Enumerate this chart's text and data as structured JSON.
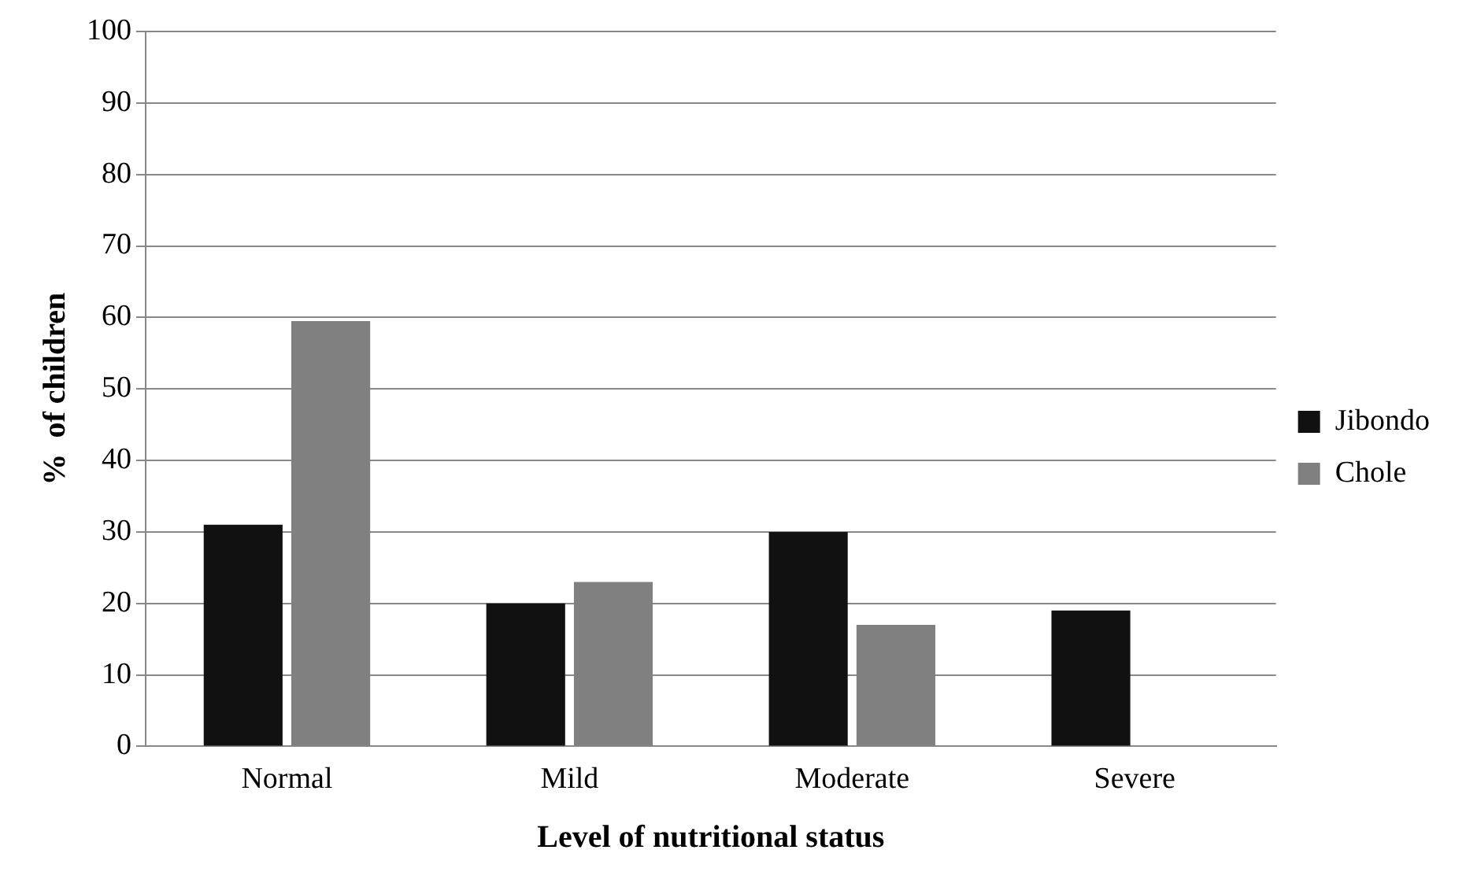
{
  "chart_data": {
    "type": "bar",
    "xlabel": "Level of nutritional status",
    "ylabel": "%  of children",
    "categories": [
      "Normal",
      "Mild",
      "Moderate",
      "Severe"
    ],
    "series": [
      {
        "name": "Jibondo",
        "color": "#111111",
        "values": [
          31,
          20,
          30,
          19
        ]
      },
      {
        "name": "Chole",
        "color": "#808080",
        "values": [
          59.5,
          23,
          17,
          0
        ]
      }
    ],
    "ylim": [
      0,
      100
    ],
    "yticks": [
      0,
      10,
      20,
      30,
      40,
      50,
      60,
      70,
      80,
      90,
      100
    ],
    "grid": "y",
    "legend": "right"
  }
}
